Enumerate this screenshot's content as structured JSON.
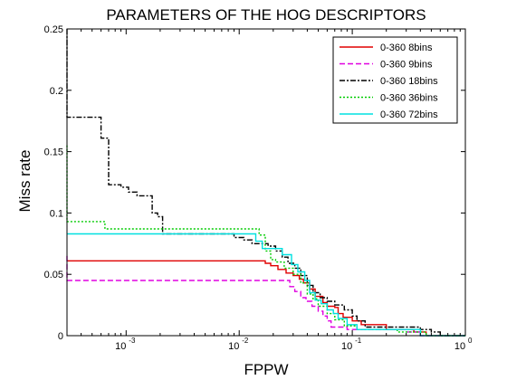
{
  "chart_data": {
    "type": "line",
    "title": "PARAMETERS OF THE HOG DESCRIPTORS",
    "xlabel": "FPPW",
    "ylabel": "Miss rate",
    "xscale": "log",
    "xlim": [
      0.0003,
      1
    ],
    "ylim": [
      0,
      0.25
    ],
    "xticks": [
      {
        "value": 0.001,
        "base": "10",
        "exp": "-3"
      },
      {
        "value": 0.01,
        "base": "10",
        "exp": "-2"
      },
      {
        "value": 0.1,
        "base": "10",
        "exp": "-1"
      },
      {
        "value": 1,
        "base": "10",
        "exp": "0"
      }
    ],
    "yticks": [
      {
        "value": 0,
        "label": "0"
      },
      {
        "value": 0.05,
        "label": "0.05"
      },
      {
        "value": 0.1,
        "label": "0.1"
      },
      {
        "value": 0.15,
        "label": "0.15"
      },
      {
        "value": 0.2,
        "label": "0.2"
      },
      {
        "value": 0.25,
        "label": "0.25"
      }
    ],
    "grid": false,
    "legend_position": "top-right",
    "series": [
      {
        "name": "0-360 8bins",
        "color": "#e00000",
        "dash": "solid",
        "points": [
          [
            0.0003,
            0.061
          ],
          [
            0.017,
            0.061
          ],
          [
            0.017,
            0.059
          ],
          [
            0.019,
            0.059
          ],
          [
            0.019,
            0.057
          ],
          [
            0.022,
            0.057
          ],
          [
            0.022,
            0.054
          ],
          [
            0.026,
            0.054
          ],
          [
            0.026,
            0.051
          ],
          [
            0.03,
            0.051
          ],
          [
            0.03,
            0.049
          ],
          [
            0.034,
            0.049
          ],
          [
            0.034,
            0.046
          ],
          [
            0.037,
            0.046
          ],
          [
            0.037,
            0.043
          ],
          [
            0.042,
            0.043
          ],
          [
            0.042,
            0.038
          ],
          [
            0.047,
            0.038
          ],
          [
            0.047,
            0.032
          ],
          [
            0.055,
            0.032
          ],
          [
            0.055,
            0.027
          ],
          [
            0.06,
            0.027
          ],
          [
            0.06,
            0.024
          ],
          [
            0.07,
            0.024
          ],
          [
            0.07,
            0.023
          ],
          [
            0.075,
            0.023
          ],
          [
            0.075,
            0.018
          ],
          [
            0.083,
            0.018
          ],
          [
            0.083,
            0.015
          ],
          [
            0.1,
            0.015
          ],
          [
            0.1,
            0.012
          ],
          [
            0.12,
            0.012
          ],
          [
            0.12,
            0.009
          ],
          [
            0.2,
            0.009
          ],
          [
            0.2,
            0.005
          ],
          [
            0.35,
            0.005
          ],
          [
            0.35,
            0.003
          ],
          [
            0.45,
            0.003
          ],
          [
            0.45,
            0
          ],
          [
            1,
            0
          ]
        ]
      },
      {
        "name": "0-360 9bins",
        "color": "#e000e0",
        "dash": "dashed",
        "points": [
          [
            0.0003,
            0.065
          ],
          [
            0.0003,
            0.045
          ],
          [
            0.028,
            0.045
          ],
          [
            0.028,
            0.04
          ],
          [
            0.031,
            0.04
          ],
          [
            0.031,
            0.036
          ],
          [
            0.035,
            0.036
          ],
          [
            0.035,
            0.031
          ],
          [
            0.039,
            0.031
          ],
          [
            0.039,
            0.028
          ],
          [
            0.044,
            0.028
          ],
          [
            0.044,
            0.024
          ],
          [
            0.05,
            0.024
          ],
          [
            0.05,
            0.02
          ],
          [
            0.055,
            0.02
          ],
          [
            0.055,
            0.016
          ],
          [
            0.06,
            0.016
          ],
          [
            0.06,
            0.012
          ],
          [
            0.065,
            0.012
          ],
          [
            0.065,
            0.007
          ],
          [
            0.09,
            0.007
          ],
          [
            0.09,
            0.005
          ],
          [
            0.3,
            0.005
          ],
          [
            0.3,
            0.003
          ],
          [
            0.4,
            0.003
          ],
          [
            0.4,
            0
          ],
          [
            1,
            0
          ]
        ]
      },
      {
        "name": "0-360 18bins",
        "color": "#000000",
        "dash": "dashdot",
        "points": [
          [
            0.0003,
            0.25
          ],
          [
            0.0003,
            0.178
          ],
          [
            0.0006,
            0.178
          ],
          [
            0.0006,
            0.161
          ],
          [
            0.0007,
            0.161
          ],
          [
            0.0007,
            0.123
          ],
          [
            0.0009,
            0.123
          ],
          [
            0.0009,
            0.121
          ],
          [
            0.00105,
            0.121
          ],
          [
            0.00105,
            0.117
          ],
          [
            0.00125,
            0.117
          ],
          [
            0.00125,
            0.114
          ],
          [
            0.0017,
            0.114
          ],
          [
            0.0017,
            0.1
          ],
          [
            0.0019,
            0.1
          ],
          [
            0.0019,
            0.097
          ],
          [
            0.0021,
            0.097
          ],
          [
            0.0021,
            0.083
          ],
          [
            0.009,
            0.083
          ],
          [
            0.009,
            0.08
          ],
          [
            0.011,
            0.08
          ],
          [
            0.011,
            0.078
          ],
          [
            0.013,
            0.078
          ],
          [
            0.013,
            0.075
          ],
          [
            0.018,
            0.075
          ],
          [
            0.018,
            0.073
          ],
          [
            0.021,
            0.073
          ],
          [
            0.021,
            0.069
          ],
          [
            0.024,
            0.069
          ],
          [
            0.024,
            0.064
          ],
          [
            0.027,
            0.064
          ],
          [
            0.027,
            0.059
          ],
          [
            0.031,
            0.059
          ],
          [
            0.031,
            0.055
          ],
          [
            0.035,
            0.055
          ],
          [
            0.035,
            0.049
          ],
          [
            0.04,
            0.049
          ],
          [
            0.04,
            0.041
          ],
          [
            0.045,
            0.041
          ],
          [
            0.045,
            0.035
          ],
          [
            0.052,
            0.035
          ],
          [
            0.052,
            0.031
          ],
          [
            0.06,
            0.031
          ],
          [
            0.06,
            0.028
          ],
          [
            0.07,
            0.028
          ],
          [
            0.07,
            0.025
          ],
          [
            0.085,
            0.025
          ],
          [
            0.085,
            0.021
          ],
          [
            0.1,
            0.021
          ],
          [
            0.1,
            0.016
          ],
          [
            0.11,
            0.016
          ],
          [
            0.11,
            0.012
          ],
          [
            0.13,
            0.012
          ],
          [
            0.13,
            0.007
          ],
          [
            0.4,
            0.007
          ],
          [
            0.4,
            0.005
          ],
          [
            0.5,
            0.005
          ],
          [
            0.5,
            0.003
          ],
          [
            0.6,
            0.003
          ],
          [
            0.6,
            0
          ],
          [
            1,
            0
          ]
        ]
      },
      {
        "name": "0-360 36bins",
        "color": "#00cc00",
        "dash": "dotted",
        "points": [
          [
            0.0003,
            0.155
          ],
          [
            0.0003,
            0.093
          ],
          [
            0.00065,
            0.093
          ],
          [
            0.00065,
            0.087
          ],
          [
            0.015,
            0.087
          ],
          [
            0.015,
            0.082
          ],
          [
            0.017,
            0.082
          ],
          [
            0.017,
            0.069
          ],
          [
            0.019,
            0.069
          ],
          [
            0.019,
            0.062
          ],
          [
            0.021,
            0.062
          ],
          [
            0.021,
            0.06
          ],
          [
            0.025,
            0.06
          ],
          [
            0.025,
            0.055
          ],
          [
            0.03,
            0.055
          ],
          [
            0.03,
            0.05
          ],
          [
            0.035,
            0.05
          ],
          [
            0.035,
            0.043
          ],
          [
            0.04,
            0.043
          ],
          [
            0.04,
            0.034
          ],
          [
            0.045,
            0.034
          ],
          [
            0.045,
            0.03
          ],
          [
            0.05,
            0.03
          ],
          [
            0.05,
            0.024
          ],
          [
            0.06,
            0.024
          ],
          [
            0.06,
            0.018
          ],
          [
            0.07,
            0.018
          ],
          [
            0.07,
            0.013
          ],
          [
            0.085,
            0.013
          ],
          [
            0.085,
            0.008
          ],
          [
            0.11,
            0.008
          ],
          [
            0.11,
            0.005
          ],
          [
            0.25,
            0.005
          ],
          [
            0.25,
            0.003
          ],
          [
            0.45,
            0.003
          ],
          [
            0.45,
            0
          ],
          [
            1,
            0
          ]
        ]
      },
      {
        "name": "0-360 72bins",
        "color": "#00e0e0",
        "dash": "solid",
        "points": [
          [
            0.0003,
            0.083
          ],
          [
            0.014,
            0.083
          ],
          [
            0.014,
            0.077
          ],
          [
            0.016,
            0.077
          ],
          [
            0.016,
            0.071
          ],
          [
            0.024,
            0.071
          ],
          [
            0.024,
            0.066
          ],
          [
            0.029,
            0.066
          ],
          [
            0.029,
            0.058
          ],
          [
            0.033,
            0.058
          ],
          [
            0.033,
            0.052
          ],
          [
            0.038,
            0.052
          ],
          [
            0.038,
            0.045
          ],
          [
            0.042,
            0.045
          ],
          [
            0.042,
            0.035
          ],
          [
            0.047,
            0.035
          ],
          [
            0.047,
            0.029
          ],
          [
            0.053,
            0.029
          ],
          [
            0.053,
            0.026
          ],
          [
            0.06,
            0.026
          ],
          [
            0.06,
            0.021
          ],
          [
            0.068,
            0.021
          ],
          [
            0.068,
            0.018
          ],
          [
            0.075,
            0.018
          ],
          [
            0.075,
            0.014
          ],
          [
            0.09,
            0.014
          ],
          [
            0.09,
            0.009
          ],
          [
            0.11,
            0.009
          ],
          [
            0.11,
            0.005
          ],
          [
            0.4,
            0.005
          ],
          [
            0.4,
            0
          ],
          [
            1,
            0
          ]
        ]
      }
    ]
  }
}
